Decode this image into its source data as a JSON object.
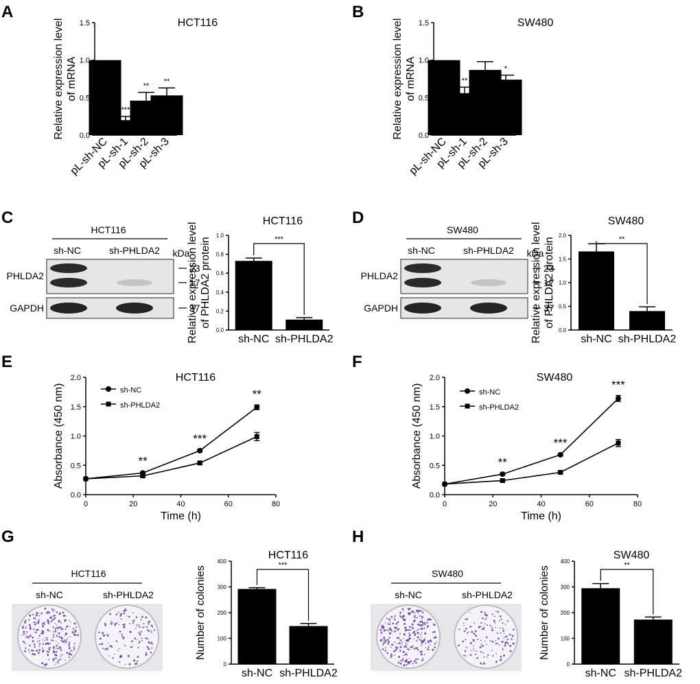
{
  "panel_letters": [
    "A",
    "B",
    "C",
    "D",
    "E",
    "F",
    "G",
    "H"
  ],
  "colors": {
    "bar": "#000000",
    "axis": "#000000",
    "blot_bg": "#e6e6e6",
    "plate_bg": "#e7e7eb",
    "colony": "#6a3f9c"
  },
  "chart_data": [
    {
      "id": "A",
      "type": "bar",
      "title": "HCT116",
      "ylabel_lines": [
        "Relative expression level",
        "of mRNA"
      ],
      "categories": [
        "pL-sh-NC",
        "pL-sh-1",
        "pL-sh-2",
        "pL-sh-3"
      ],
      "values": [
        1.0,
        0.2,
        0.46,
        0.53
      ],
      "errors": [
        0,
        0.05,
        0.11,
        0.1
      ],
      "annotations": [
        "",
        "***",
        "**",
        "**"
      ],
      "ylim": [
        0,
        1.5
      ],
      "yticks": [
        "0.0",
        "0.5",
        "1.0",
        "1.5"
      ]
    },
    {
      "id": "B",
      "type": "bar",
      "title": "SW480",
      "ylabel_lines": [
        "Relative expression level",
        "of mRNA"
      ],
      "categories": [
        "pL-sh-NC",
        "pL-sh-1",
        "pL-sh-2",
        "pL-sh-3"
      ],
      "values": [
        1.0,
        0.56,
        0.87,
        0.74
      ],
      "errors": [
        0,
        0.08,
        0.11,
        0.06
      ],
      "annotations": [
        "",
        "**",
        "",
        "*"
      ],
      "ylim": [
        0,
        1.5
      ],
      "yticks": [
        "0.0",
        "0.5",
        "1.0",
        "1.5"
      ]
    },
    {
      "id": "C",
      "type": "bar",
      "title": "HCT116",
      "ylabel_lines": [
        "Relative expression level",
        "of PHLDA2 protein"
      ],
      "categories": [
        "sh-NC",
        "sh-PHLDA2"
      ],
      "values": [
        0.73,
        0.11
      ],
      "errors": [
        0.03,
        0.02
      ],
      "significance": "***",
      "ylim": [
        0,
        1.0
      ],
      "yticks": [
        "0.0",
        "0.2",
        "0.4",
        "0.6",
        "0.8",
        "1.0"
      ]
    },
    {
      "id": "D",
      "type": "bar",
      "title": "SW480",
      "ylabel_lines": [
        "Relative expression level",
        "of PHLDA2 protein"
      ],
      "categories": [
        "sh-NC",
        "sh-PHLDA2"
      ],
      "values": [
        1.66,
        0.4
      ],
      "errors": [
        0.16,
        0.09
      ],
      "significance": "**",
      "ylim": [
        0,
        2.0
      ],
      "yticks": [
        "0.0",
        "0.5",
        "1.0",
        "1.5",
        "2.0"
      ]
    },
    {
      "id": "E",
      "type": "line",
      "title": "HCT116",
      "xlabel": "Time (h)",
      "ylabel": "Absorbance (450 nm)",
      "x": [
        0,
        24,
        48,
        72
      ],
      "series": [
        {
          "name": "sh-NC",
          "marker": "circle",
          "values": [
            0.27,
            0.37,
            0.75,
            1.49
          ],
          "errors": [
            0,
            0.02,
            0.02,
            0.04
          ]
        },
        {
          "name": "sh-PHLDA2",
          "marker": "square",
          "values": [
            0.27,
            0.32,
            0.54,
            0.99
          ],
          "errors": [
            0,
            0.02,
            0.02,
            0.07
          ]
        }
      ],
      "annotations": [
        "",
        "**",
        "***",
        "**"
      ],
      "xlim": [
        0,
        80
      ],
      "xticks": [
        "0",
        "20",
        "40",
        "60",
        "80"
      ],
      "ylim": [
        0,
        2.0
      ],
      "yticks": [
        "0.0",
        "0.5",
        "1.0",
        "1.5",
        "2.0"
      ]
    },
    {
      "id": "F",
      "type": "line",
      "title": "SW480",
      "xlabel": "Time (h)",
      "ylabel": "Absorbance (450 nm)",
      "x": [
        0,
        24,
        48,
        72
      ],
      "series": [
        {
          "name": "sh-NC",
          "marker": "circle",
          "values": [
            0.18,
            0.35,
            0.68,
            1.64
          ],
          "errors": [
            0,
            0.02,
            0.02,
            0.05
          ]
        },
        {
          "name": "sh-PHLDA2",
          "marker": "square",
          "values": [
            0.18,
            0.24,
            0.38,
            0.88
          ],
          "errors": [
            0,
            0.02,
            0.02,
            0.06
          ]
        }
      ],
      "annotations": [
        "",
        "**",
        "***",
        "***"
      ],
      "xlim": [
        0,
        80
      ],
      "xticks": [
        "0",
        "20",
        "40",
        "60",
        "80"
      ],
      "ylim": [
        0,
        2.0
      ],
      "yticks": [
        "0.0",
        "0.5",
        "1.0",
        "1.5",
        "2.0"
      ]
    },
    {
      "id": "G",
      "type": "bar",
      "title": "HCT116",
      "ylabel_lines": [
        "Number of colonies"
      ],
      "categories": [
        "sh-NC",
        "sh-PHLDA2"
      ],
      "values": [
        292,
        148
      ],
      "errors": [
        5,
        10
      ],
      "significance": "***",
      "ylim": [
        0,
        400
      ],
      "yticks": [
        "0",
        "100",
        "200",
        "300",
        "400"
      ]
    },
    {
      "id": "H",
      "type": "bar",
      "title": "SW480",
      "ylabel_lines": [
        "Number of colonies"
      ],
      "categories": [
        "sh-NC",
        "sh-PHLDA2"
      ],
      "values": [
        295,
        173
      ],
      "errors": [
        18,
        10
      ],
      "significance": "**",
      "ylim": [
        0,
        400
      ],
      "yticks": [
        "0",
        "100",
        "200",
        "300",
        "400"
      ]
    }
  ],
  "blots": [
    {
      "id": "C",
      "cell_line": "HCT116",
      "lanes": [
        "sh-NC",
        "sh-PHLDA2"
      ],
      "protein": "PHLDA2",
      "loading": "GAPDH",
      "unit": "kDa",
      "markers": [
        "23",
        "17"
      ],
      "loading_marker": "37"
    },
    {
      "id": "D",
      "cell_line": "SW480",
      "lanes": [
        "sh-NC",
        "sh-PHLDA2"
      ],
      "protein": "PHLDA2",
      "loading": "GAPDH",
      "unit": "kDa",
      "markers": [
        "23",
        "17"
      ],
      "loading_marker": "37"
    }
  ],
  "plates": [
    {
      "id": "G",
      "cell_line": "HCT116",
      "lanes": [
        "sh-NC",
        "sh-PHLDA2"
      ]
    },
    {
      "id": "H",
      "cell_line": "SW480",
      "lanes": [
        "sh-NC",
        "sh-PHLDA2"
      ]
    }
  ]
}
